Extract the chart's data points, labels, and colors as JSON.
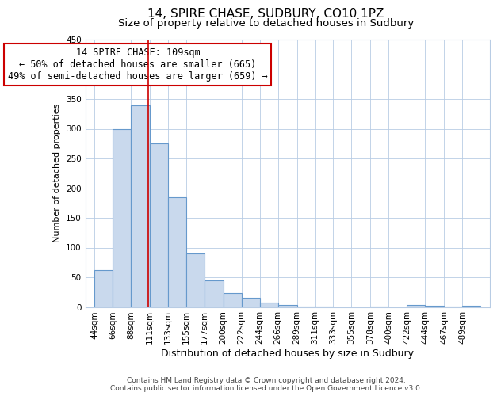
{
  "title": "14, SPIRE CHASE, SUDBURY, CO10 1PZ",
  "subtitle": "Size of property relative to detached houses in Sudbury",
  "xlabel": "Distribution of detached houses by size in Sudbury",
  "ylabel": "Number of detached properties",
  "bar_color": "#c9d9ed",
  "bar_edge_color": "#6699cc",
  "bar_edge_width": 0.8,
  "bin_labels": [
    "44sqm",
    "66sqm",
    "88sqm",
    "111sqm",
    "133sqm",
    "155sqm",
    "177sqm",
    "200sqm",
    "222sqm",
    "244sqm",
    "266sqm",
    "289sqm",
    "311sqm",
    "333sqm",
    "355sqm",
    "378sqm",
    "400sqm",
    "422sqm",
    "444sqm",
    "467sqm",
    "489sqm"
  ],
  "bar_heights": [
    62,
    300,
    340,
    275,
    185,
    90,
    45,
    23,
    16,
    7,
    3,
    1,
    1,
    0,
    0,
    1,
    0,
    3,
    2,
    1,
    2
  ],
  "bin_edges": [
    44,
    66,
    88,
    111,
    133,
    155,
    177,
    200,
    222,
    244,
    266,
    289,
    311,
    333,
    355,
    378,
    400,
    422,
    444,
    467,
    489,
    511
  ],
  "ylim": [
    0,
    450
  ],
  "yticks": [
    0,
    50,
    100,
    150,
    200,
    250,
    300,
    350,
    400,
    450
  ],
  "vline_x": 109,
  "vline_color": "#cc0000",
  "annotation_lines": [
    "14 SPIRE CHASE: 109sqm",
    "← 50% of detached houses are smaller (665)",
    "49% of semi-detached houses are larger (659) →"
  ],
  "annotation_fontsize": 8.5,
  "footer_line1": "Contains HM Land Registry data © Crown copyright and database right 2024.",
  "footer_line2": "Contains public sector information licensed under the Open Government Licence v3.0.",
  "background_color": "#ffffff",
  "grid_color": "#b8cce4",
  "title_fontsize": 11,
  "subtitle_fontsize": 9.5,
  "xlabel_fontsize": 9,
  "ylabel_fontsize": 8,
  "tick_label_fontsize": 7.5,
  "footer_fontsize": 6.5
}
